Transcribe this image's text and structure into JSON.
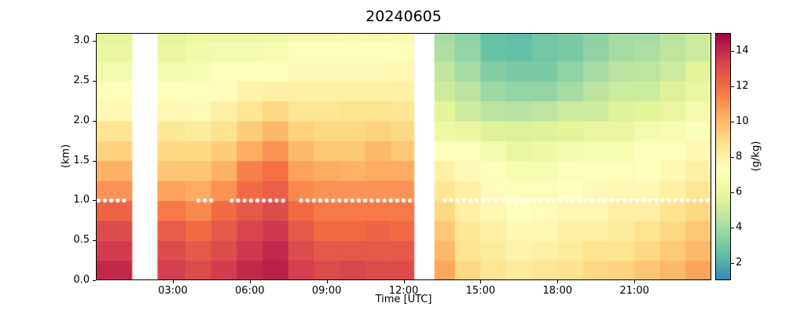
{
  "chart_data": {
    "type": "heatmap",
    "title": "20240605",
    "xlabel": "Time [UTC]",
    "ylabel": "(km)",
    "xlim": [
      0,
      24
    ],
    "ylim": [
      0,
      3.1
    ],
    "x_ticks": [
      {
        "value": 3,
        "label": "03:00"
      },
      {
        "value": 6,
        "label": "06:00"
      },
      {
        "value": 9,
        "label": "09:00"
      },
      {
        "value": 12,
        "label": "12:00"
      },
      {
        "value": 15,
        "label": "15:00"
      },
      {
        "value": 18,
        "label": "18:00"
      },
      {
        "value": 21,
        "label": "21:00"
      }
    ],
    "y_ticks": [
      {
        "value": 0,
        "label": "0.0"
      },
      {
        "value": 0.5,
        "label": "0.5"
      },
      {
        "value": 1,
        "label": "1.0"
      },
      {
        "value": 1.5,
        "label": "1.5"
      },
      {
        "value": 2,
        "label": "2.0"
      },
      {
        "value": 2.5,
        "label": "2.5"
      },
      {
        "value": 3,
        "label": "3.0"
      }
    ],
    "colorbar": {
      "label": "(g/kg)",
      "ticks": [
        2,
        4,
        6,
        8,
        10,
        12,
        14
      ],
      "vmin": 1,
      "vmax": 15,
      "stops": [
        "#3288bd",
        "#66c2a5",
        "#abdda4",
        "#e6f598",
        "#ffffbf",
        "#fee08b",
        "#fdae61",
        "#f46d43",
        "#d53e4f",
        "#9e0142"
      ]
    },
    "units": "g/kg",
    "height_edges_km": [
      0,
      0.25,
      0.5,
      0.75,
      1.0,
      1.25,
      1.5,
      1.75,
      2.0,
      2.25,
      2.5,
      2.75,
      3.0,
      3.1
    ],
    "gaps_hours": [
      [
        1.4,
        2.4
      ],
      [
        12.4,
        13.2
      ]
    ],
    "columns": [
      {
        "t0": 0.0,
        "t1": 1.4,
        "v": [
          14,
          13.5,
          13,
          12.2,
          11,
          10.2,
          9.2,
          8.5,
          7.6,
          7,
          6.5,
          6,
          5.6
        ]
      },
      {
        "t0": 1.4,
        "t1": 2.4,
        "v": null
      },
      {
        "t0": 2.4,
        "t1": 3.5,
        "v": [
          13.4,
          13,
          12.5,
          11.6,
          10.6,
          9.6,
          9,
          8.4,
          7.6,
          7,
          6.5,
          6,
          5.6
        ]
      },
      {
        "t0": 3.5,
        "t1": 4.5,
        "v": [
          13,
          12.6,
          12,
          11.2,
          10.4,
          9.6,
          9,
          8.2,
          7.5,
          7,
          6.6,
          6.4,
          6
        ]
      },
      {
        "t0": 4.5,
        "t1": 5.5,
        "v": [
          13.5,
          13,
          12.6,
          12,
          11,
          10.2,
          9.4,
          8.6,
          8,
          7.4,
          7,
          6.5,
          6
        ]
      },
      {
        "t0": 5.5,
        "t1": 6.5,
        "v": [
          14,
          13.6,
          13.2,
          12.6,
          12,
          11.4,
          10.4,
          9.4,
          8.5,
          7.8,
          7,
          6.5,
          6
        ]
      },
      {
        "t0": 6.5,
        "t1": 7.5,
        "v": [
          14.2,
          14,
          13.6,
          13,
          12.4,
          11.8,
          11,
          10,
          9,
          8,
          7.2,
          6.6,
          6.2
        ]
      },
      {
        "t0": 7.5,
        "t1": 8.5,
        "v": [
          13.4,
          13,
          12.6,
          12,
          11.2,
          10.6,
          10,
          9.2,
          8.5,
          8,
          7.5,
          7,
          6.5
        ]
      },
      {
        "t0": 8.5,
        "t1": 9.5,
        "v": [
          13,
          12.6,
          12,
          11.6,
          11,
          10.4,
          9.6,
          9,
          8.5,
          8,
          7.5,
          7,
          6.5
        ]
      },
      {
        "t0": 9.5,
        "t1": 10.5,
        "v": [
          13.2,
          12.6,
          12,
          11.6,
          11,
          10.2,
          9.6,
          9,
          8.6,
          8,
          7.5,
          7,
          6.6
        ]
      },
      {
        "t0": 10.5,
        "t1": 11.5,
        "v": [
          13,
          12.6,
          12.2,
          11.6,
          11,
          10.4,
          10,
          9.2,
          8.6,
          8,
          7.5,
          7,
          6.5
        ]
      },
      {
        "t0": 11.5,
        "t1": 12.4,
        "v": [
          13,
          12.6,
          12,
          11.6,
          11,
          10.4,
          9.6,
          9,
          8.5,
          8,
          7.6,
          7,
          6.6
        ]
      },
      {
        "t0": 12.4,
        "t1": 13.2,
        "v": null
      },
      {
        "t0": 13.2,
        "t1": 14.0,
        "v": [
          10.5,
          10,
          9.6,
          9,
          8.5,
          8,
          7.2,
          6.2,
          5.6,
          5,
          4.6,
          4.2,
          4
        ]
      },
      {
        "t0": 14.0,
        "t1": 15.0,
        "v": [
          9,
          8.6,
          8.4,
          8,
          8,
          7.5,
          7,
          6,
          5,
          4.5,
          4,
          3.6,
          3.4
        ]
      },
      {
        "t0": 15.0,
        "t1": 16.0,
        "v": [
          8.5,
          8.2,
          8,
          7.6,
          7.4,
          7,
          6.5,
          5.5,
          4.5,
          3.8,
          3.2,
          2.6,
          2.5
        ]
      },
      {
        "t0": 16.0,
        "t1": 17.0,
        "v": [
          8.2,
          7.8,
          7.6,
          7.2,
          7,
          6.6,
          6,
          5.4,
          4.4,
          3.6,
          3,
          2.5,
          2.4
        ]
      },
      {
        "t0": 17.0,
        "t1": 18.0,
        "v": [
          8.5,
          8,
          7.6,
          7.4,
          7,
          6.6,
          6.2,
          5.5,
          4.6,
          3.6,
          3,
          2.8,
          2.8
        ]
      },
      {
        "t0": 18.0,
        "t1": 19.0,
        "v": [
          8.6,
          8.2,
          8,
          7.6,
          7.2,
          7,
          6.5,
          5.6,
          5,
          4,
          3.5,
          3,
          3
        ]
      },
      {
        "t0": 19.0,
        "t1": 20.0,
        "v": [
          9,
          8.6,
          8,
          7.6,
          7.5,
          7,
          6.6,
          6,
          5,
          4.5,
          4,
          3.5,
          3.4
        ]
      },
      {
        "t0": 20.0,
        "t1": 21.0,
        "v": [
          9.2,
          8.6,
          8.2,
          8,
          7.6,
          7,
          6.6,
          6,
          5.5,
          5,
          4.5,
          4,
          4
        ]
      },
      {
        "t0": 21.0,
        "t1": 22.0,
        "v": [
          9.6,
          9,
          8.6,
          8,
          7.6,
          7.2,
          7,
          6.5,
          5.6,
          5,
          4.6,
          4.2,
          4
        ]
      },
      {
        "t0": 22.0,
        "t1": 23.0,
        "v": [
          10,
          9.5,
          9,
          8.6,
          8,
          7.6,
          7,
          6.6,
          6,
          5.5,
          5,
          4.6,
          4.5
        ]
      },
      {
        "t0": 23.0,
        "t1": 24.0,
        "v": [
          10.6,
          10,
          9.6,
          9,
          8.5,
          8,
          7.6,
          7,
          6.5,
          6,
          5.6,
          5,
          5
        ]
      }
    ],
    "dots": {
      "height_km": 1.0,
      "marker_color": "#ffffff",
      "segments": [
        {
          "from": 0.1,
          "to": 1.1,
          "step": 0.25
        },
        {
          "from": 4.0,
          "to": 4.5,
          "step": 0.25
        },
        {
          "from": 5.3,
          "to": 7.3,
          "step": 0.25
        },
        {
          "from": 8.0,
          "to": 12.25,
          "step": 0.25
        },
        {
          "from": 13.6,
          "to": 23.85,
          "step": 0.25
        }
      ]
    }
  }
}
